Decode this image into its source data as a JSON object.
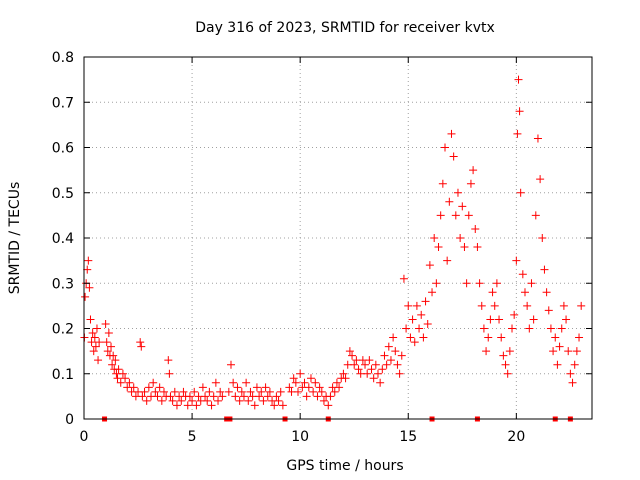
{
  "chart_data": {
    "type": "scatter",
    "title": "Day 316 of 2023, SRMTID for receiver kvtx",
    "xlabel": "GPS time / hours",
    "ylabel": "SRMTID / TECUs",
    "xlim": [
      0,
      23.5
    ],
    "ylim": [
      0,
      0.8
    ],
    "x_ticks": [
      0,
      5,
      10,
      15,
      20
    ],
    "x_tick_labels": [
      "0",
      "5",
      "10",
      "15",
      "20"
    ],
    "y_ticks": [
      0,
      0.1,
      0.2,
      0.3,
      0.4,
      0.5,
      0.6,
      0.7,
      0.8
    ],
    "y_tick_labels": [
      "0",
      "0.1",
      "0.2",
      "0.3",
      "0.4",
      "0.5",
      "0.6",
      "0.7",
      "0.8"
    ],
    "grid": true,
    "marker": "+",
    "color": "#ff0000",
    "series": [
      {
        "name": "SRMTID",
        "points": [
          [
            0.02,
            0.18
          ],
          [
            0.05,
            0.27
          ],
          [
            0.1,
            0.3
          ],
          [
            0.15,
            0.33
          ],
          [
            0.2,
            0.35
          ],
          [
            0.25,
            0.29
          ],
          [
            0.3,
            0.22
          ],
          [
            0.35,
            0.17
          ],
          [
            0.4,
            0.19
          ],
          [
            0.45,
            0.15
          ],
          [
            0.5,
            0.18
          ],
          [
            0.55,
            0.16
          ],
          [
            0.6,
            0.2
          ],
          [
            0.65,
            0.13
          ],
          [
            0.7,
            0.17
          ],
          [
            1.0,
            0.21
          ],
          [
            1.05,
            0.17
          ],
          [
            1.1,
            0.15
          ],
          [
            1.15,
            0.19
          ],
          [
            1.2,
            0.14
          ],
          [
            1.25,
            0.16
          ],
          [
            1.3,
            0.12
          ],
          [
            1.35,
            0.14
          ],
          [
            1.4,
            0.11
          ],
          [
            1.45,
            0.13
          ],
          [
            1.5,
            0.1
          ],
          [
            1.55,
            0.09
          ],
          [
            1.6,
            0.11
          ],
          [
            1.7,
            0.08
          ],
          [
            1.8,
            0.1
          ],
          [
            1.9,
            0.09
          ],
          [
            2.0,
            0.07
          ],
          [
            2.1,
            0.08
          ],
          [
            2.2,
            0.06
          ],
          [
            2.3,
            0.07
          ],
          [
            2.4,
            0.05
          ],
          [
            2.5,
            0.06
          ],
          [
            2.6,
            0.17
          ],
          [
            2.65,
            0.16
          ],
          [
            2.7,
            0.05
          ],
          [
            2.8,
            0.06
          ],
          [
            2.9,
            0.04
          ],
          [
            3.0,
            0.07
          ],
          [
            3.1,
            0.05
          ],
          [
            3.2,
            0.08
          ],
          [
            3.3,
            0.06
          ],
          [
            3.4,
            0.05
          ],
          [
            3.5,
            0.07
          ],
          [
            3.6,
            0.04
          ],
          [
            3.7,
            0.06
          ],
          [
            3.8,
            0.05
          ],
          [
            3.9,
            0.13
          ],
          [
            3.95,
            0.1
          ],
          [
            4.0,
            0.05
          ],
          [
            4.1,
            0.04
          ],
          [
            4.2,
            0.06
          ],
          [
            4.3,
            0.03
          ],
          [
            4.4,
            0.05
          ],
          [
            4.5,
            0.04
          ],
          [
            4.6,
            0.06
          ],
          [
            4.7,
            0.05
          ],
          [
            4.8,
            0.03
          ],
          [
            4.9,
            0.05
          ],
          [
            5.0,
            0.04
          ],
          [
            5.1,
            0.06
          ],
          [
            5.2,
            0.03
          ],
          [
            5.3,
            0.05
          ],
          [
            5.4,
            0.04
          ],
          [
            5.5,
            0.07
          ],
          [
            5.6,
            0.05
          ],
          [
            5.7,
            0.04
          ],
          [
            5.8,
            0.06
          ],
          [
            5.9,
            0.03
          ],
          [
            6.0,
            0.05
          ],
          [
            6.1,
            0.08
          ],
          [
            6.2,
            0.04
          ],
          [
            6.3,
            0.06
          ],
          [
            6.4,
            0.05
          ],
          [
            6.7,
            0.06
          ],
          [
            6.8,
            0.12
          ],
          [
            6.9,
            0.08
          ],
          [
            7.0,
            0.05
          ],
          [
            7.1,
            0.07
          ],
          [
            7.2,
            0.04
          ],
          [
            7.3,
            0.06
          ],
          [
            7.4,
            0.05
          ],
          [
            7.5,
            0.08
          ],
          [
            7.6,
            0.04
          ],
          [
            7.7,
            0.06
          ],
          [
            7.8,
            0.05
          ],
          [
            7.9,
            0.03
          ],
          [
            8.0,
            0.07
          ],
          [
            8.1,
            0.05
          ],
          [
            8.2,
            0.06
          ],
          [
            8.3,
            0.04
          ],
          [
            8.4,
            0.07
          ],
          [
            8.5,
            0.05
          ],
          [
            8.6,
            0.06
          ],
          [
            8.7,
            0.04
          ],
          [
            8.8,
            0.03
          ],
          [
            8.9,
            0.05
          ],
          [
            9.0,
            0.04
          ],
          [
            9.1,
            0.06
          ],
          [
            9.2,
            0.03
          ],
          [
            9.5,
            0.07
          ],
          [
            9.6,
            0.06
          ],
          [
            9.7,
            0.09
          ],
          [
            9.8,
            0.08
          ],
          [
            9.9,
            0.06
          ],
          [
            10.0,
            0.1
          ],
          [
            10.1,
            0.07
          ],
          [
            10.2,
            0.08
          ],
          [
            10.3,
            0.05
          ],
          [
            10.4,
            0.07
          ],
          [
            10.5,
            0.09
          ],
          [
            10.6,
            0.06
          ],
          [
            10.7,
            0.08
          ],
          [
            10.8,
            0.05
          ],
          [
            10.9,
            0.07
          ],
          [
            11.0,
            0.06
          ],
          [
            11.1,
            0.04
          ],
          [
            11.2,
            0.05
          ],
          [
            11.3,
            0.03
          ],
          [
            11.4,
            0.05
          ],
          [
            11.5,
            0.07
          ],
          [
            11.6,
            0.06
          ],
          [
            11.7,
            0.08
          ],
          [
            11.8,
            0.07
          ],
          [
            11.9,
            0.09
          ],
          [
            12.0,
            0.1
          ],
          [
            12.1,
            0.09
          ],
          [
            12.2,
            0.12
          ],
          [
            12.3,
            0.15
          ],
          [
            12.4,
            0.14
          ],
          [
            12.5,
            0.12
          ],
          [
            12.6,
            0.13
          ],
          [
            12.7,
            0.11
          ],
          [
            12.8,
            0.1
          ],
          [
            12.9,
            0.13
          ],
          [
            13.0,
            0.12
          ],
          [
            13.1,
            0.1
          ],
          [
            13.2,
            0.13
          ],
          [
            13.3,
            0.11
          ],
          [
            13.4,
            0.09
          ],
          [
            13.5,
            0.12
          ],
          [
            13.6,
            0.1
          ],
          [
            13.7,
            0.08
          ],
          [
            13.8,
            0.11
          ],
          [
            13.9,
            0.14
          ],
          [
            14.0,
            0.12
          ],
          [
            14.1,
            0.16
          ],
          [
            14.2,
            0.13
          ],
          [
            14.3,
            0.18
          ],
          [
            14.4,
            0.15
          ],
          [
            14.5,
            0.12
          ],
          [
            14.6,
            0.1
          ],
          [
            14.7,
            0.14
          ],
          [
            14.8,
            0.31
          ],
          [
            14.9,
            0.2
          ],
          [
            15.0,
            0.25
          ],
          [
            15.1,
            0.18
          ],
          [
            15.2,
            0.22
          ],
          [
            15.3,
            0.17
          ],
          [
            15.4,
            0.25
          ],
          [
            15.5,
            0.2
          ],
          [
            15.6,
            0.23
          ],
          [
            15.7,
            0.18
          ],
          [
            15.8,
            0.26
          ],
          [
            15.9,
            0.21
          ],
          [
            16.0,
            0.34
          ],
          [
            16.1,
            0.28
          ],
          [
            16.2,
            0.4
          ],
          [
            16.3,
            0.3
          ],
          [
            16.4,
            0.38
          ],
          [
            16.5,
            0.45
          ],
          [
            16.6,
            0.52
          ],
          [
            16.7,
            0.6
          ],
          [
            16.8,
            0.35
          ],
          [
            16.9,
            0.48
          ],
          [
            17.0,
            0.63
          ],
          [
            17.1,
            0.58
          ],
          [
            17.2,
            0.45
          ],
          [
            17.3,
            0.5
          ],
          [
            17.4,
            0.4
          ],
          [
            17.5,
            0.47
          ],
          [
            17.6,
            0.38
          ],
          [
            17.7,
            0.3
          ],
          [
            17.8,
            0.45
          ],
          [
            17.9,
            0.52
          ],
          [
            18.0,
            0.55
          ],
          [
            18.1,
            0.42
          ],
          [
            18.2,
            0.38
          ],
          [
            18.3,
            0.3
          ],
          [
            18.4,
            0.25
          ],
          [
            18.5,
            0.2
          ],
          [
            18.6,
            0.15
          ],
          [
            18.7,
            0.18
          ],
          [
            18.8,
            0.22
          ],
          [
            18.9,
            0.28
          ],
          [
            19.0,
            0.25
          ],
          [
            19.1,
            0.3
          ],
          [
            19.2,
            0.22
          ],
          [
            19.3,
            0.18
          ],
          [
            19.4,
            0.14
          ],
          [
            19.5,
            0.12
          ],
          [
            19.6,
            0.1
          ],
          [
            19.7,
            0.15
          ],
          [
            19.8,
            0.2
          ],
          [
            19.9,
            0.23
          ],
          [
            20.0,
            0.35
          ],
          [
            20.05,
            0.63
          ],
          [
            20.1,
            0.75
          ],
          [
            20.15,
            0.68
          ],
          [
            20.2,
            0.5
          ],
          [
            20.3,
            0.32
          ],
          [
            20.4,
            0.28
          ],
          [
            20.5,
            0.25
          ],
          [
            20.6,
            0.2
          ],
          [
            20.7,
            0.3
          ],
          [
            20.8,
            0.22
          ],
          [
            20.9,
            0.45
          ],
          [
            21.0,
            0.62
          ],
          [
            21.1,
            0.53
          ],
          [
            21.2,
            0.4
          ],
          [
            21.3,
            0.33
          ],
          [
            21.4,
            0.28
          ],
          [
            21.5,
            0.24
          ],
          [
            21.6,
            0.2
          ],
          [
            21.7,
            0.15
          ],
          [
            21.8,
            0.18
          ],
          [
            21.9,
            0.12
          ],
          [
            22.0,
            0.16
          ],
          [
            22.1,
            0.2
          ],
          [
            22.2,
            0.25
          ],
          [
            22.3,
            0.22
          ],
          [
            22.4,
            0.15
          ],
          [
            22.5,
            0.1
          ],
          [
            22.6,
            0.08
          ],
          [
            22.7,
            0.12
          ],
          [
            22.8,
            0.15
          ],
          [
            22.9,
            0.18
          ],
          [
            23.0,
            0.25
          ]
        ]
      }
    ],
    "gap_markers_x": [
      0.95,
      6.6,
      6.75,
      9.3,
      11.3,
      16.1,
      18.2,
      21.8,
      22.5
    ]
  }
}
